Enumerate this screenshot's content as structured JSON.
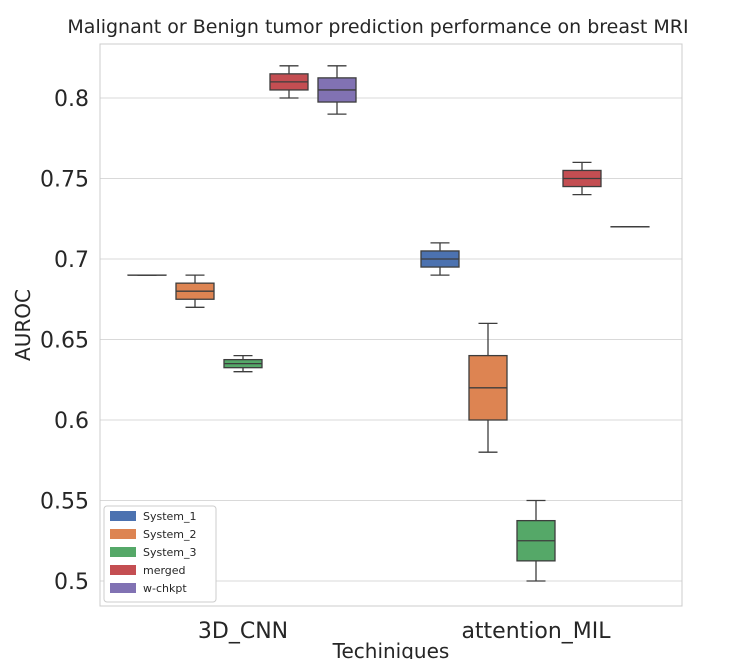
{
  "chart_data": {
    "type": "box",
    "title": "Malignant or Benign tumor prediction performance on breast MRI",
    "xlabel": "Techiniques",
    "ylabel": "AUROC",
    "ylim": [
      0.485,
      0.835
    ],
    "yticks": [
      {
        "value": 0.5,
        "label": "0.5"
      },
      {
        "value": 0.55,
        "label": "0.55"
      },
      {
        "value": 0.6,
        "label": "0.6"
      },
      {
        "value": 0.65,
        "label": "0.65"
      },
      {
        "value": 0.7,
        "label": "0.7"
      },
      {
        "value": 0.75,
        "label": "0.75"
      },
      {
        "value": 0.8,
        "label": "0.8"
      }
    ],
    "grid": "horizontal",
    "legend_position": "bottom-left",
    "categories": [
      "3D_CNN",
      "attention_MIL"
    ],
    "series": [
      {
        "name": "System_1",
        "color": "#4c72b0",
        "boxes": [
          {
            "min": 0.69,
            "q1": 0.69,
            "median": 0.69,
            "q3": 0.69,
            "max": 0.69
          },
          {
            "min": 0.69,
            "q1": 0.695,
            "median": 0.7,
            "q3": 0.705,
            "max": 0.71
          }
        ]
      },
      {
        "name": "System_2",
        "color": "#dd8452",
        "boxes": [
          {
            "min": 0.67,
            "q1": 0.675,
            "median": 0.68,
            "q3": 0.685,
            "max": 0.69
          },
          {
            "min": 0.58,
            "q1": 0.6,
            "median": 0.62,
            "q3": 0.64,
            "max": 0.66
          }
        ]
      },
      {
        "name": "System_3",
        "color": "#55a868",
        "boxes": [
          {
            "min": 0.63,
            "q1": 0.6325,
            "median": 0.635,
            "q3": 0.6375,
            "max": 0.64
          },
          {
            "min": 0.5,
            "q1": 0.5125,
            "median": 0.525,
            "q3": 0.5375,
            "max": 0.55
          }
        ]
      },
      {
        "name": "merged",
        "color": "#c44e52",
        "boxes": [
          {
            "min": 0.8,
            "q1": 0.805,
            "median": 0.81,
            "q3": 0.815,
            "max": 0.82
          },
          {
            "min": 0.74,
            "q1": 0.745,
            "median": 0.75,
            "q3": 0.755,
            "max": 0.76
          }
        ]
      },
      {
        "name": "w-chkpt",
        "color": "#8172b3",
        "boxes": [
          {
            "min": 0.79,
            "q1": 0.7975,
            "median": 0.805,
            "q3": 0.8125,
            "max": 0.82
          },
          {
            "min": 0.72,
            "q1": 0.72,
            "median": 0.72,
            "q3": 0.72,
            "max": 0.72
          }
        ]
      }
    ]
  }
}
